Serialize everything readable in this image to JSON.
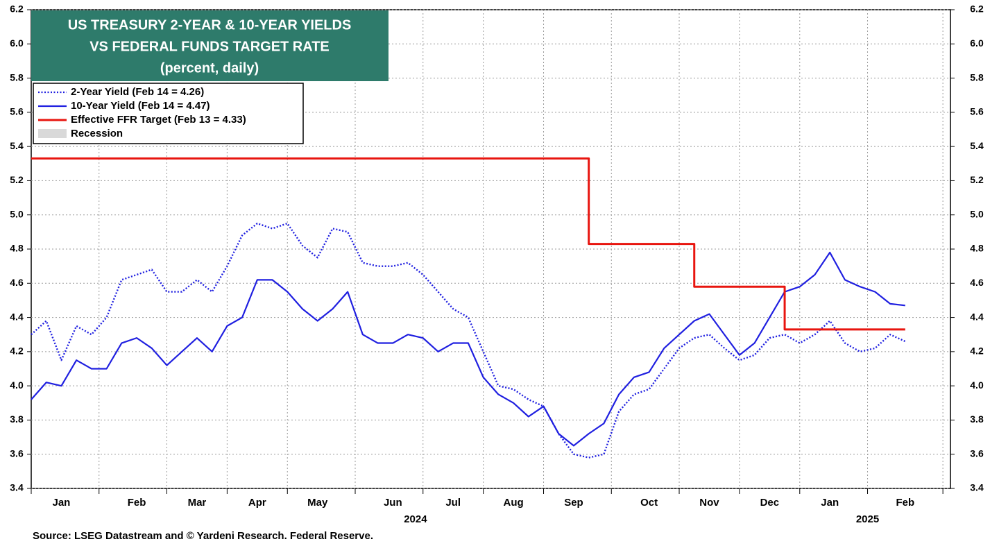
{
  "chart_data": {
    "type": "line",
    "title": [
      "US TREASURY 2-YEAR & 10-YEAR YIELDS",
      "VS FEDERAL FUNDS TARGET RATE"
    ],
    "subtitle": "(percent, daily)",
    "source": "Source: LSEG Datastream and © Yardeni Research. Federal Reserve.",
    "categories": [
      null,
      null,
      "Jan",
      null,
      null,
      null,
      null,
      "Feb",
      null,
      null,
      null,
      "Mar",
      null,
      null,
      null,
      "Apr",
      null,
      null,
      null,
      "May",
      null,
      null,
      null,
      null,
      "Jun",
      null,
      null,
      null,
      "Jul",
      null,
      null,
      null,
      "Aug",
      null,
      null,
      null,
      "Sep",
      null,
      null,
      null,
      null,
      "Oct",
      null,
      null,
      null,
      "Nov",
      null,
      null,
      null,
      "Dec",
      null,
      null,
      null,
      "Jan",
      null,
      null,
      null,
      null,
      "Feb",
      null,
      null,
      null
    ],
    "years": [
      "2024",
      "2025"
    ],
    "series": [
      {
        "name": "2-Year Yield (Feb 14 = 4.26)",
        "color": "#1f1fe0",
        "dash": "dotted",
        "values": [
          4.3,
          4.38,
          4.15,
          4.35,
          4.3,
          4.4,
          4.62,
          4.65,
          4.68,
          4.55,
          4.55,
          4.62,
          4.55,
          4.7,
          4.88,
          4.95,
          4.92,
          4.95,
          4.82,
          4.75,
          4.92,
          4.9,
          4.72,
          4.7,
          4.7,
          4.72,
          4.65,
          4.55,
          4.45,
          4.4,
          4.2,
          4.0,
          3.98,
          3.92,
          3.88,
          3.72,
          3.6,
          3.58,
          3.6,
          3.85,
          3.95,
          3.98,
          4.1,
          4.22,
          4.28,
          4.3,
          4.22,
          4.15,
          4.18,
          4.28,
          4.3,
          4.25,
          4.3,
          4.38,
          4.25,
          4.2,
          4.22,
          4.3,
          4.26,
          null,
          null,
          null
        ]
      },
      {
        "name": "10-Year Yield (Feb 14 = 4.47)",
        "color": "#1f1fe0",
        "dash": "solid",
        "values": [
          3.92,
          4.02,
          4.0,
          4.15,
          4.1,
          4.1,
          4.25,
          4.28,
          4.22,
          4.12,
          4.2,
          4.28,
          4.2,
          4.35,
          4.4,
          4.62,
          4.62,
          4.55,
          4.45,
          4.38,
          4.45,
          4.55,
          4.3,
          4.25,
          4.25,
          4.3,
          4.28,
          4.2,
          4.25,
          4.25,
          4.05,
          3.95,
          3.9,
          3.82,
          3.88,
          3.72,
          3.65,
          3.72,
          3.78,
          3.95,
          4.05,
          4.08,
          4.22,
          4.3,
          4.38,
          4.42,
          4.3,
          4.18,
          4.25,
          4.4,
          4.55,
          4.58,
          4.65,
          4.78,
          4.62,
          4.58,
          4.55,
          4.48,
          4.47,
          null,
          null,
          null
        ]
      },
      {
        "name": "Effective FFR Target (Feb 13 = 4.33)",
        "color": "#e8150f",
        "dash": "solid",
        "step": true,
        "values": [
          5.33,
          5.33,
          5.33,
          5.33,
          5.33,
          5.33,
          5.33,
          5.33,
          5.33,
          5.33,
          5.33,
          5.33,
          5.33,
          5.33,
          5.33,
          5.33,
          5.33,
          5.33,
          5.33,
          5.33,
          5.33,
          5.33,
          5.33,
          5.33,
          5.33,
          5.33,
          5.33,
          5.33,
          5.33,
          5.33,
          5.33,
          5.33,
          5.33,
          5.33,
          5.33,
          5.33,
          5.33,
          4.83,
          4.83,
          4.83,
          4.83,
          4.83,
          4.83,
          4.83,
          4.58,
          4.58,
          4.58,
          4.58,
          4.58,
          4.58,
          4.33,
          4.33,
          4.33,
          4.33,
          4.33,
          4.33,
          4.33,
          4.33,
          4.33,
          null,
          null,
          null
        ]
      }
    ],
    "recession": {
      "name": "Recession",
      "color": "#d9d9d9"
    },
    "ylim": [
      3.4,
      6.2
    ],
    "yticks": [
      3.4,
      3.6,
      3.8,
      {
        "value": 4,
        "label": "4.0"
      },
      4.2,
      4.4,
      4.6,
      4.8,
      {
        "value": 5,
        "label": "5.0"
      },
      5.2,
      5.4,
      5.6,
      5.8,
      {
        "value": 6,
        "label": "6.0"
      },
      6.2
    ],
    "y2lim": [
      3.4,
      6.2
    ],
    "y2ticks": [
      3.4,
      3.6,
      3.8,
      {
        "value": 4,
        "label": "4.0"
      },
      4.2,
      4.4,
      4.6,
      4.8,
      {
        "value": 5,
        "label": "5.0"
      },
      5.2,
      5.4,
      5.6,
      5.8,
      {
        "value": 6,
        "label": "6.0"
      },
      6.2
    ],
    "grid": true
  }
}
